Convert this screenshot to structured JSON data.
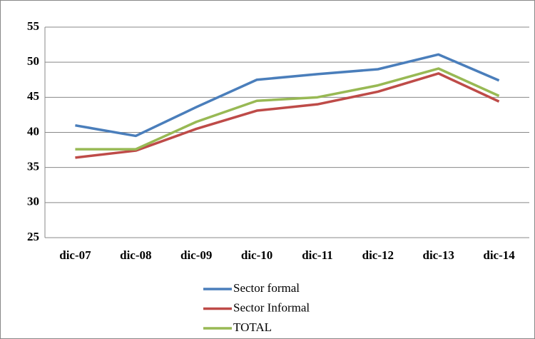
{
  "chart_data": {
    "type": "line",
    "categories": [
      "dic-07",
      "dic-08",
      "dic-09",
      "dic-10",
      "dic-11",
      "dic-12",
      "dic-13",
      "dic-14"
    ],
    "series": [
      {
        "name": "Sector formal",
        "color": "#4a7ebb",
        "values": [
          41.0,
          39.5,
          43.6,
          47.5,
          48.3,
          49.0,
          51.1,
          47.4
        ]
      },
      {
        "name": "Sector Informal",
        "color": "#be4b48",
        "values": [
          36.4,
          37.4,
          40.5,
          43.1,
          44.0,
          45.8,
          48.4,
          44.4
        ]
      },
      {
        "name": "TOTAL",
        "color": "#98b954",
        "values": [
          37.6,
          37.6,
          41.5,
          44.5,
          45.0,
          46.7,
          49.1,
          45.2
        ]
      }
    ],
    "ylim": [
      25,
      55
    ],
    "yticks": [
      25,
      30,
      35,
      40,
      45,
      50,
      55
    ],
    "grid": true,
    "legend": "bottom"
  }
}
